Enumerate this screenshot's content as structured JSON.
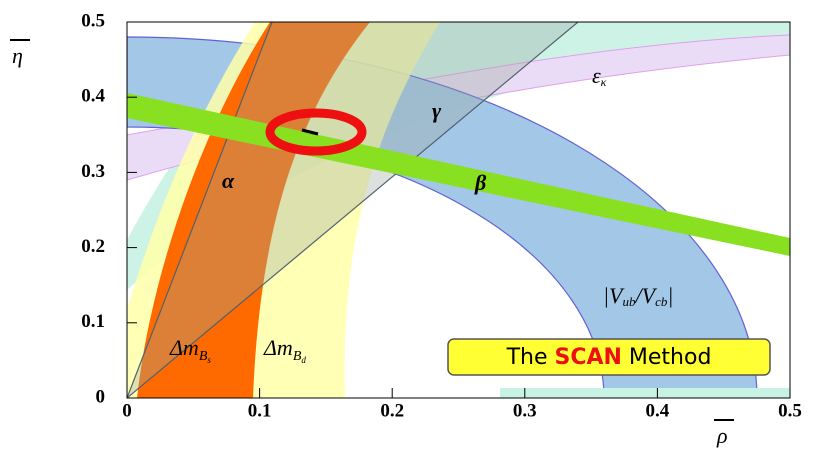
{
  "chart_data": {
    "type": "region",
    "xlabel": "ρ",
    "ylabel": "η",
    "xlim": [
      0,
      0.5
    ],
    "ylim": [
      0,
      0.5
    ],
    "xticks": [
      0,
      0.1,
      0.2,
      0.3,
      0.4,
      0.5
    ],
    "yticks": [
      0,
      0.1,
      0.2,
      0.3,
      0.4,
      0.5
    ],
    "annotations": {
      "alpha": "α",
      "beta": "β",
      "gamma": "γ",
      "epsilon": [
        "ε",
        "κ"
      ],
      "vub": [
        "|V",
        "ub",
        "/V",
        "cb",
        "|"
      ],
      "dmbs": [
        "Δm",
        "B",
        "s"
      ],
      "dmbd": [
        "Δm",
        "B",
        "d"
      ]
    },
    "banner": [
      "The ",
      "SCAN",
      " Method"
    ]
  }
}
